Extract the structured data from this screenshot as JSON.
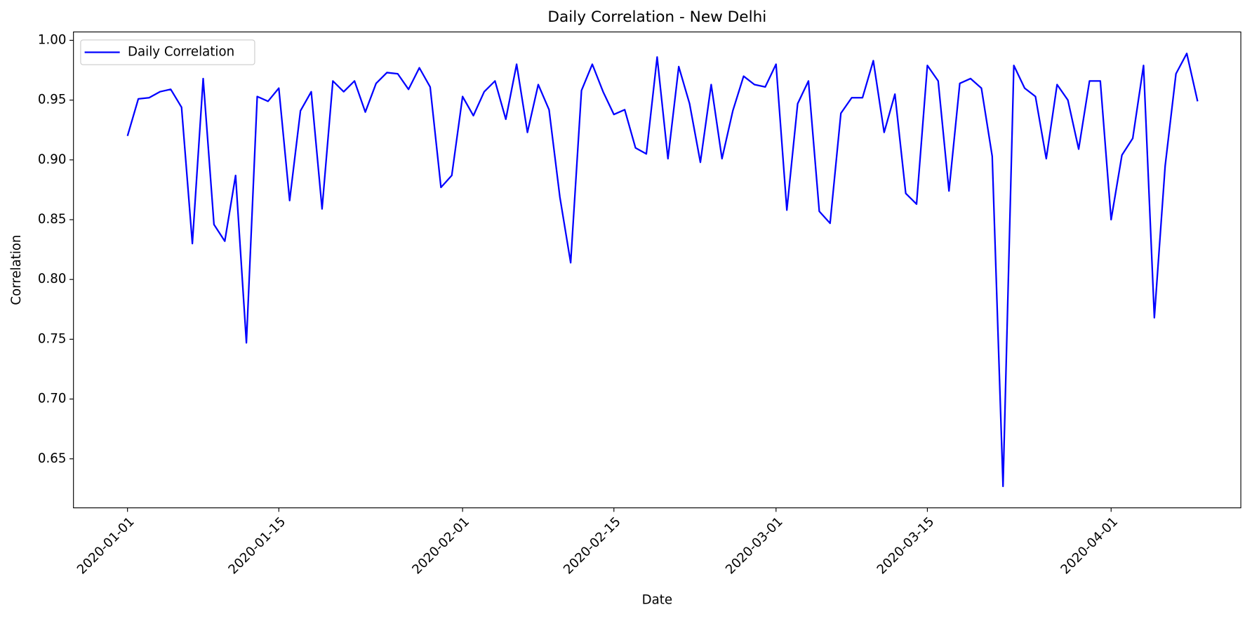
{
  "chart_data": {
    "type": "line",
    "title": "Daily Correlation - New Delhi",
    "x_label": "Date",
    "y_label": "Correlation",
    "x": [
      "2020-01-01",
      "2020-01-02",
      "2020-01-03",
      "2020-01-04",
      "2020-01-05",
      "2020-01-06",
      "2020-01-07",
      "2020-01-08",
      "2020-01-09",
      "2020-01-10",
      "2020-01-11",
      "2020-01-12",
      "2020-01-13",
      "2020-01-14",
      "2020-01-15",
      "2020-01-16",
      "2020-01-17",
      "2020-01-18",
      "2020-01-19",
      "2020-01-20",
      "2020-01-21",
      "2020-01-22",
      "2020-01-23",
      "2020-01-24",
      "2020-01-25",
      "2020-01-26",
      "2020-01-27",
      "2020-01-28",
      "2020-01-29",
      "2020-01-30",
      "2020-01-31",
      "2020-02-01",
      "2020-02-02",
      "2020-02-03",
      "2020-02-04",
      "2020-02-05",
      "2020-02-06",
      "2020-02-07",
      "2020-02-08",
      "2020-02-09",
      "2020-02-10",
      "2020-02-11",
      "2020-02-12",
      "2020-02-13",
      "2020-02-14",
      "2020-02-15",
      "2020-02-16",
      "2020-02-17",
      "2020-02-18",
      "2020-02-19",
      "2020-02-20",
      "2020-02-21",
      "2020-02-22",
      "2020-02-23",
      "2020-02-24",
      "2020-02-25",
      "2020-02-26",
      "2020-02-27",
      "2020-02-28",
      "2020-02-29",
      "2020-03-01",
      "2020-03-02",
      "2020-03-03",
      "2020-03-04",
      "2020-03-05",
      "2020-03-06",
      "2020-03-07",
      "2020-03-08",
      "2020-03-09",
      "2020-03-10",
      "2020-03-11",
      "2020-03-12",
      "2020-03-13",
      "2020-03-14",
      "2020-03-15",
      "2020-03-16",
      "2020-03-17",
      "2020-03-18",
      "2020-03-19",
      "2020-03-20",
      "2020-03-21",
      "2020-03-22",
      "2020-03-23",
      "2020-03-24",
      "2020-03-25",
      "2020-03-26",
      "2020-03-27",
      "2020-03-28",
      "2020-03-29",
      "2020-03-30",
      "2020-03-31",
      "2020-04-01",
      "2020-04-02",
      "2020-04-03",
      "2020-04-04",
      "2020-04-05",
      "2020-04-06",
      "2020-04-07",
      "2020-04-08",
      "2020-04-09"
    ],
    "series": [
      {
        "name": "Daily Correlation",
        "color": "#0000ff",
        "values": [
          0.92,
          0.951,
          0.952,
          0.957,
          0.959,
          0.944,
          0.83,
          0.968,
          0.846,
          0.832,
          0.887,
          0.747,
          0.953,
          0.949,
          0.96,
          0.866,
          0.941,
          0.957,
          0.859,
          0.966,
          0.957,
          0.966,
          0.94,
          0.964,
          0.973,
          0.972,
          0.959,
          0.977,
          0.961,
          0.877,
          0.887,
          0.953,
          0.937,
          0.957,
          0.966,
          0.934,
          0.98,
          0.923,
          0.963,
          0.942,
          0.869,
          0.814,
          0.958,
          0.98,
          0.957,
          0.938,
          0.942,
          0.91,
          0.905,
          0.986,
          0.901,
          0.978,
          0.947,
          0.898,
          0.963,
          0.901,
          0.941,
          0.97,
          0.963,
          0.961,
          0.98,
          0.858,
          0.947,
          0.966,
          0.857,
          0.847,
          0.939,
          0.952,
          0.952,
          0.983,
          0.923,
          0.955,
          0.872,
          0.863,
          0.979,
          0.966,
          0.874,
          0.964,
          0.968,
          0.96,
          0.903,
          0.627,
          0.979,
          0.96,
          0.953,
          0.901,
          0.963,
          0.95,
          0.909,
          0.966,
          0.966,
          0.85,
          0.904,
          0.918,
          0.979,
          0.768,
          0.895,
          0.972,
          0.989,
          0.949
        ]
      }
    ],
    "xlim": [
      "2019-12-27",
      "2020-04-13"
    ],
    "xticks": [
      "2020-01-01",
      "2020-01-15",
      "2020-02-01",
      "2020-02-15",
      "2020-03-01",
      "2020-03-15",
      "2020-04-01"
    ],
    "ylim": [
      0.609,
      1.007
    ],
    "yticks": [
      0.65,
      {
        "value": 0.7,
        "label": "0.70"
      },
      0.75,
      {
        "value": 0.8,
        "label": "0.80"
      },
      0.85,
      {
        "value": 0.9,
        "label": "0.90"
      },
      0.95,
      {
        "value": 1,
        "label": "1.00"
      }
    ],
    "legend": "upper left",
    "grid": false
  }
}
